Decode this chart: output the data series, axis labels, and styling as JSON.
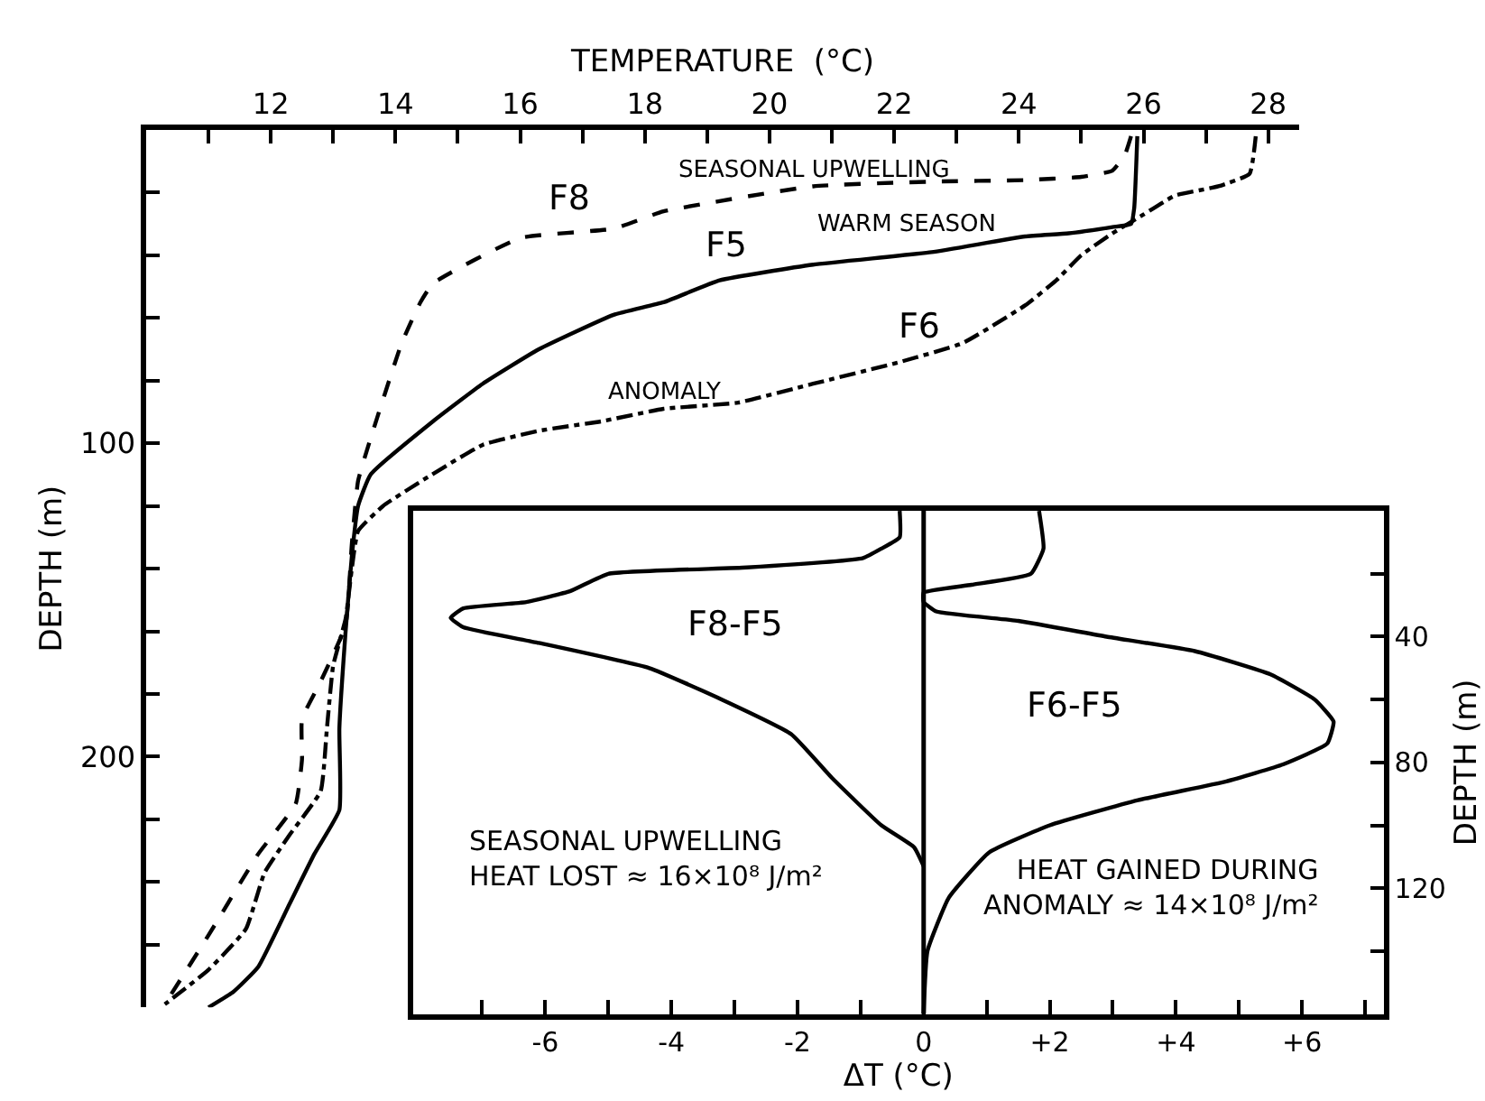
{
  "chart_data": [
    {
      "type": "line",
      "xlabel": "TEMPERATURE  (°C)",
      "ylabel": "DEPTH (m)",
      "xlim": [
        10,
        28.5
      ],
      "ylim": [
        280,
        0
      ],
      "xticks": [
        {
          "value": 11,
          "label": null
        },
        12,
        {
          "value": 13,
          "label": null
        },
        14,
        {
          "value": 15,
          "label": null
        },
        16,
        {
          "value": 17,
          "label": null
        },
        18,
        {
          "value": 19,
          "label": null
        },
        20,
        {
          "value": 21,
          "label": null
        },
        22,
        {
          "value": 23,
          "label": null
        },
        24,
        {
          "value": 25,
          "label": null
        },
        26,
        {
          "value": 27,
          "label": null
        },
        28
      ],
      "yticks": [
        {
          "value": 20,
          "label": null
        },
        {
          "value": 40,
          "label": null
        },
        {
          "value": 60,
          "label": null
        },
        {
          "value": 80,
          "label": null
        },
        100,
        {
          "value": 120,
          "label": null
        },
        {
          "value": 140,
          "label": null
        },
        {
          "value": 160,
          "label": null
        },
        {
          "value": 180,
          "label": null
        },
        200,
        {
          "value": 220,
          "label": null
        },
        {
          "value": 240,
          "label": null
        },
        {
          "value": 260,
          "label": null
        }
      ],
      "series": [
        {
          "color": "#000000",
          "line_style": "dashed",
          "x": [
            25.8,
            25.7,
            25.5,
            25.0,
            24.1,
            22.6,
            20.7,
            18.3,
            17.5,
            16.0,
            14.6,
            14.4,
            14.1,
            13.6,
            13.4,
            13.3,
            13.2,
            12.8,
            12.5,
            12.5,
            12.4,
            11.8,
            11.0,
            10.3
          ],
          "values": [
            2,
            8,
            13,
            15,
            16,
            16.5,
            18,
            26,
            31.5,
            34.5,
            49,
            55,
            68,
            98.5,
            112,
            132,
            158,
            176,
            188,
            201,
            215,
            231,
            257,
            279
          ]
        },
        {
          "color": "#000000",
          "line_style": "solid",
          "x": [
            25.9,
            25.85,
            25.8,
            25.5,
            24.8,
            24.1,
            22.6,
            20.7,
            19.2,
            18.3,
            17.5,
            16.3,
            15.4,
            14.6,
            13.6,
            13.4,
            13.3,
            13.2,
            13.1,
            13.1,
            12.7,
            12.3,
            11.8,
            11.4,
            11.0
          ],
          "values": [
            2,
            25,
            30,
            31,
            33,
            34,
            39,
            43,
            48,
            55,
            59,
            70,
            81,
            93,
            110,
            120,
            136,
            160,
            191,
            217,
            231,
            247,
            267,
            275,
            280
          ]
        },
        {
          "color": "#000000",
          "line_style": "dashdot",
          "x": [
            27.8,
            27.7,
            27.2,
            26.5,
            26.0,
            25.5,
            25.0,
            24.6,
            24.1,
            23.1,
            22.1,
            20.7,
            19.5,
            18.3,
            17.3,
            16.3,
            15.4,
            14.5,
            13.8,
            13.4,
            13.3,
            13.2,
            13.0,
            12.9,
            12.8,
            12.3,
            11.9,
            11.6,
            11.0,
            10.3
          ],
          "values": [
            2,
            14,
            18,
            21,
            27,
            33,
            40,
            48,
            56,
            68,
            74,
            81,
            87,
            89,
            93,
            96,
            100.5,
            111,
            120,
            128,
            140,
            156,
            171,
            191,
            211,
            225,
            237,
            255,
            268,
            279
          ]
        }
      ],
      "annotations": [
        "F8",
        "SEASONAL UPWELLING",
        "F5",
        "WARM SEASON",
        "F6",
        "ANOMALY"
      ]
    },
    {
      "type": "line",
      "xlabel": "ΔT (°C)",
      "ylabel": "DEPTH (m)",
      "xlim": [
        -8.1,
        7.3
      ],
      "ylim": [
        160,
        0
      ],
      "xticks": [
        {
          "value": -7,
          "label": null
        },
        -6,
        {
          "value": -5,
          "label": null
        },
        -4,
        {
          "value": -3,
          "label": null
        },
        -2,
        {
          "value": -1,
          "label": null
        },
        0,
        {
          "value": 1,
          "label": null
        },
        {
          "value": 2,
          "label": "+2"
        },
        {
          "value": 3,
          "label": null
        },
        {
          "value": 4,
          "label": "+4"
        },
        {
          "value": 5,
          "label": null
        },
        {
          "value": 6,
          "label": "+6"
        },
        {
          "value": 7,
          "label": null
        }
      ],
      "yticks": [
        {
          "value": 20,
          "label": null
        },
        40,
        {
          "value": 60,
          "label": null
        },
        80,
        {
          "value": 100,
          "label": null
        },
        120,
        {
          "value": 140,
          "label": null
        }
      ],
      "ref_lines": [
        {
          "axis": "x",
          "value": 0,
          "color": "#000000"
        }
      ],
      "series": [
        {
          "color": "#000000",
          "line_style": "solid",
          "x": [
            -0.38,
            -0.38,
            -0.67,
            -0.96,
            -2.8,
            -5.0,
            -5.6,
            -6.3,
            -7.3,
            -7.5,
            -7.3,
            -6.1,
            -4.35,
            -3.2,
            -2.1,
            -1.45,
            -0.67,
            -0.15,
            0
          ],
          "values": [
            0,
            8.4,
            12,
            15,
            18,
            20,
            25.5,
            29,
            31,
            34,
            37,
            42,
            50,
            60,
            71,
            85,
            100,
            107,
            113
          ]
        },
        {
          "color": "#000000",
          "line_style": "solid",
          "x": [
            1.83,
            1.9,
            1.7,
            0.76,
            0,
            0,
            0.2,
            1.5,
            2.9,
            4.3,
            5.5,
            6.2,
            6.5,
            6.4,
            5.7,
            4.8,
            3.4,
            2.0,
            1.04,
            0.4,
            0.06,
            0
          ],
          "values": [
            0,
            12,
            20,
            23.5,
            26,
            29,
            32,
            35,
            40,
            44.6,
            52,
            60,
            67,
            74,
            80.6,
            86,
            92,
            100,
            108.6,
            123,
            140,
            160
          ]
        }
      ],
      "annotations": [
        "F8-F5",
        "SEASONAL UPWELLING\nHEAT LOST ≈ 16×10⁸ J/m²",
        "F6-F5",
        "HEAT GAINED DURING\nANOMALY ≈ 14×10⁸ J/m²"
      ]
    }
  ]
}
